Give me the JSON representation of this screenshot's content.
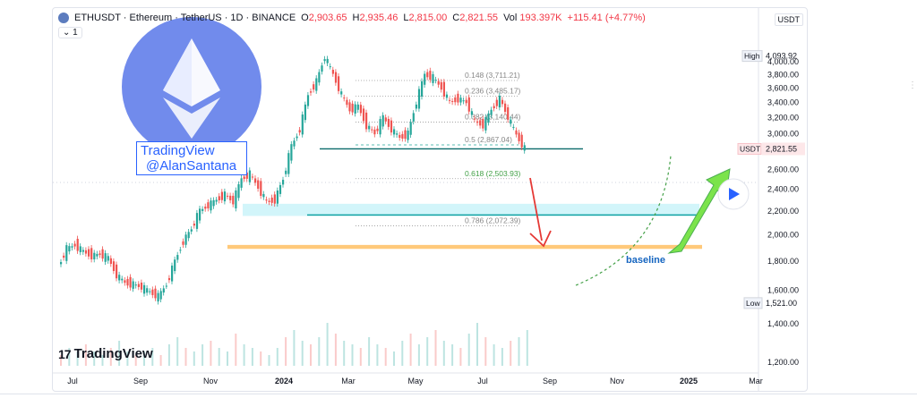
{
  "header": {
    "symbol": "ETHUSDT · Ethereum · TetherUS · 1D · BINANCE",
    "open_label": "O",
    "open": "2,903.65",
    "high_label": "H",
    "high": "2,935.46",
    "low_label": "L",
    "low": "2,815.00",
    "close_label": "C",
    "close": "2,821.55",
    "vol_label": "Vol",
    "vol": "193.397K",
    "change": "+115.41 (+4.77%)",
    "interval": "1"
  },
  "axis_unit": "USDT",
  "watermark": {
    "line1": "TradingView",
    "line2": "@AlanSantana"
  },
  "logo_text": "TradingView",
  "logo_mark": "17",
  "baseline_label": "baseline",
  "colors": {
    "up": "#26a69a",
    "down": "#ef5350",
    "accent": "#2962ff",
    "eth": "#627eea"
  },
  "chart_data": {
    "type": "candlestick",
    "title": "ETHUSDT · Ethereum · TetherUS · 1D · BINANCE",
    "x_ticks": [
      "Jul",
      "Sep",
      "Nov",
      "2024",
      "Mar",
      "May",
      "Jul",
      "Sep",
      "Nov",
      "2025",
      "Mar"
    ],
    "y_ticks": [
      "4,000.00",
      "3,800.00",
      "3,600.00",
      "3,400.00",
      "3,200.00",
      "3,000.00",
      "2,600.00",
      "2,400.00",
      "2,200.00",
      "2,000.00",
      "1,800.00",
      "1,600.00",
      "1,400.00",
      "1,200.00"
    ],
    "ylim": [
      1200,
      4110
    ],
    "scale": "log",
    "high_marker": {
      "label": "High",
      "value": "4,093.92"
    },
    "low_marker": {
      "label": "Low",
      "value": "1,521.00"
    },
    "last_price": {
      "label": "USDT",
      "value": "2,821.55"
    },
    "price_path": [
      [
        0,
        1760
      ],
      [
        3,
        1890
      ],
      [
        6,
        1920
      ],
      [
        9,
        1870
      ],
      [
        12,
        1840
      ],
      [
        15,
        1850
      ],
      [
        18,
        1820
      ],
      [
        21,
        1700
      ],
      [
        24,
        1650
      ],
      [
        27,
        1640
      ],
      [
        30,
        1620
      ],
      [
        33,
        1590
      ],
      [
        36,
        1560
      ],
      [
        39,
        1640
      ],
      [
        42,
        1800
      ],
      [
        45,
        1950
      ],
      [
        48,
        2050
      ],
      [
        51,
        2200
      ],
      [
        54,
        2250
      ],
      [
        57,
        2300
      ],
      [
        60,
        2350
      ],
      [
        63,
        2280
      ],
      [
        66,
        2500
      ],
      [
        69,
        2550
      ],
      [
        72,
        2420
      ],
      [
        75,
        2280
      ],
      [
        78,
        2300
      ],
      [
        81,
        2500
      ],
      [
        84,
        2850
      ],
      [
        87,
        3050
      ],
      [
        90,
        3500
      ],
      [
        93,
        3700
      ],
      [
        96,
        4080
      ],
      [
        99,
        3800
      ],
      [
        102,
        3500
      ],
      [
        105,
        3300
      ],
      [
        108,
        3350
      ],
      [
        111,
        3100
      ],
      [
        114,
        3000
      ],
      [
        117,
        3200
      ],
      [
        120,
        3050
      ],
      [
        123,
        2950
      ],
      [
        126,
        3000
      ],
      [
        129,
        3400
      ],
      [
        132,
        3800
      ],
      [
        135,
        3750
      ],
      [
        138,
        3600
      ],
      [
        141,
        3400
      ],
      [
        144,
        3450
      ],
      [
        147,
        3400
      ],
      [
        150,
        3150
      ],
      [
        153,
        3100
      ],
      [
        156,
        3300
      ],
      [
        159,
        3450
      ],
      [
        162,
        3200
      ],
      [
        165,
        2980
      ],
      [
        168,
        2821
      ]
    ],
    "fibonacci": [
      {
        "ratio": "0.148",
        "label": "0.148 (3,711.21)",
        "value": 3711.21
      },
      {
        "ratio": "0.236",
        "label": "0.236 (3,485.17)",
        "value": 3485.17
      },
      {
        "ratio": "0.382",
        "label": "0.382 (3,140.44)",
        "value": 3140.44
      },
      {
        "ratio": "0.5",
        "label": "0.5 (2,867.04)",
        "value": 2867.04
      },
      {
        "ratio": "0.618",
        "label": "0.618 (2,503.93)",
        "value": 2503.93
      },
      {
        "ratio": "0.786",
        "label": "0.786 (2,072.39)",
        "value": 2072.39
      }
    ],
    "annotations": [
      {
        "type": "support",
        "value": 2821.55
      },
      {
        "type": "zone",
        "from": 2180,
        "to": 2240
      },
      {
        "type": "zone",
        "from": 1890,
        "to": 1920
      },
      {
        "type": "text",
        "label": "baseline"
      }
    ]
  }
}
